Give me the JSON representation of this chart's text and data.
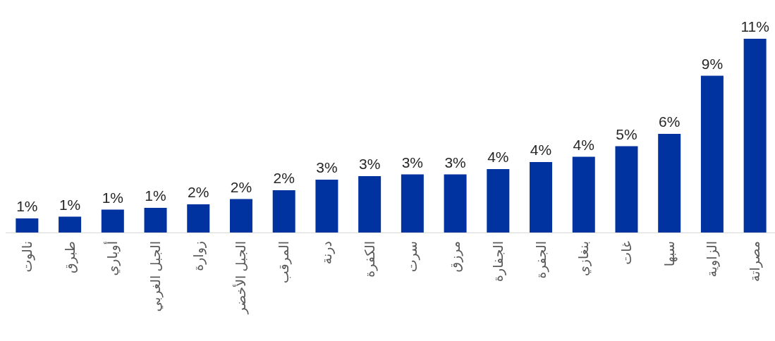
{
  "chart_data": {
    "type": "bar",
    "categories": [
      "نالوت",
      "طبرق",
      "أوباري",
      "الجبل الغربي",
      "زوارة",
      "الجبل الأخضر",
      "المرقب",
      "درنة",
      "الكفرة",
      "سرت",
      "مرزق",
      "الجفارة",
      "الجفرة",
      "بنغازي",
      "غات",
      "سبها",
      "الزاوية",
      "مصراتة"
    ],
    "values": [
      0.8,
      0.9,
      1.3,
      1.4,
      1.6,
      1.9,
      2.4,
      3.0,
      3.2,
      3.3,
      3.3,
      3.6,
      4.0,
      4.3,
      4.9,
      5.6,
      8.9,
      11.0
    ],
    "value_labels": [
      "1%",
      "1%",
      "1%",
      "1%",
      "2%",
      "2%",
      "2%",
      "3%",
      "3%",
      "3%",
      "3%",
      "4%",
      "4%",
      "4%",
      "5%",
      "6%",
      "9%",
      "11%"
    ],
    "color": "#0033a0"
  }
}
